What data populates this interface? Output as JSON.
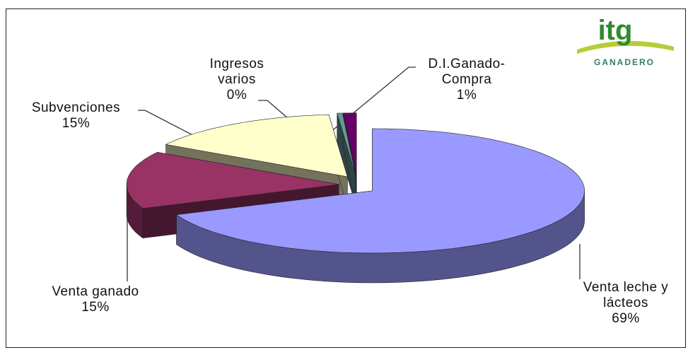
{
  "chart_data": {
    "type": "pie3d",
    "categories": [
      "Venta leche y lácteos",
      "Venta ganado",
      "Subvenciones",
      "Ingresos varios",
      "D.I.Ganado-Compra"
    ],
    "values": [
      69,
      15,
      15,
      0.4,
      1
    ],
    "value_labels": [
      "69%",
      "15%",
      "15%",
      "0%",
      "1%"
    ],
    "colors": [
      "#9999ff",
      "#993366",
      "#ffffcc",
      "#669999",
      "#660066"
    ]
  },
  "logo": {
    "mark": "itg",
    "text": "GANADERO"
  }
}
